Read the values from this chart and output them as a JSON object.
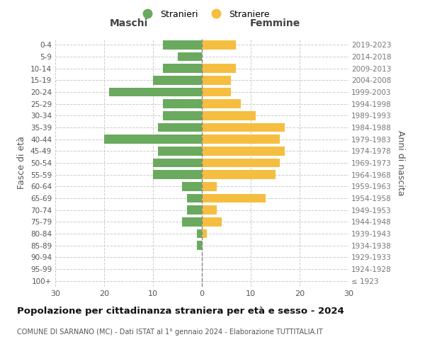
{
  "age_groups": [
    "100+",
    "95-99",
    "90-94",
    "85-89",
    "80-84",
    "75-79",
    "70-74",
    "65-69",
    "60-64",
    "55-59",
    "50-54",
    "45-49",
    "40-44",
    "35-39",
    "30-34",
    "25-29",
    "20-24",
    "15-19",
    "10-14",
    "5-9",
    "0-4"
  ],
  "birth_years": [
    "≤ 1923",
    "1924-1928",
    "1929-1933",
    "1934-1938",
    "1939-1943",
    "1944-1948",
    "1949-1953",
    "1954-1958",
    "1959-1963",
    "1964-1968",
    "1969-1973",
    "1974-1978",
    "1979-1983",
    "1984-1988",
    "1989-1993",
    "1994-1998",
    "1999-2003",
    "2004-2008",
    "2009-2013",
    "2014-2018",
    "2019-2023"
  ],
  "males": [
    0,
    0,
    0,
    1,
    1,
    4,
    3,
    3,
    4,
    10,
    10,
    9,
    20,
    9,
    8,
    8,
    19,
    10,
    8,
    5,
    8
  ],
  "females": [
    0,
    0,
    0,
    0,
    1,
    4,
    3,
    13,
    3,
    15,
    16,
    17,
    16,
    17,
    11,
    8,
    6,
    6,
    7,
    0,
    7
  ],
  "male_color": "#6aaa5e",
  "female_color": "#f5be41",
  "title_main": "Popolazione per cittadinanza straniera per età e sesso - 2024",
  "title_sub": "COMUNE DI SARNANO (MC) - Dati ISTAT al 1° gennaio 2024 - Elaborazione TUTTITALIA.IT",
  "label_left": "Maschi",
  "label_right": "Femmine",
  "ylabel_left": "Fasce di età",
  "ylabel_right": "Anni di nascita",
  "legend_male": "Stranieri",
  "legend_female": "Straniere",
  "xlim": 30,
  "background_color": "#ffffff",
  "grid_color": "#cccccc"
}
